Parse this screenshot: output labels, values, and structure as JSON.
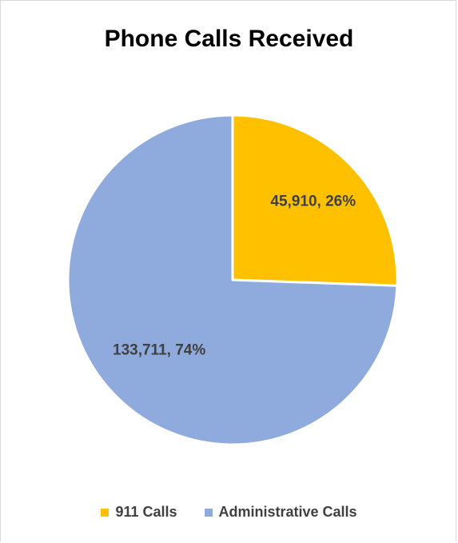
{
  "chart_data": {
    "type": "pie",
    "title": "Phone Calls Received",
    "categories": [
      "911 Calls",
      "Administrative Calls"
    ],
    "values": [
      45910,
      133711
    ],
    "percents": [
      "26%",
      "74%"
    ],
    "data_labels": [
      "45,910, 26%",
      "133,711, 74%"
    ],
    "colors": [
      "#ffc000",
      "#8faadc"
    ],
    "legend_position": "bottom"
  }
}
